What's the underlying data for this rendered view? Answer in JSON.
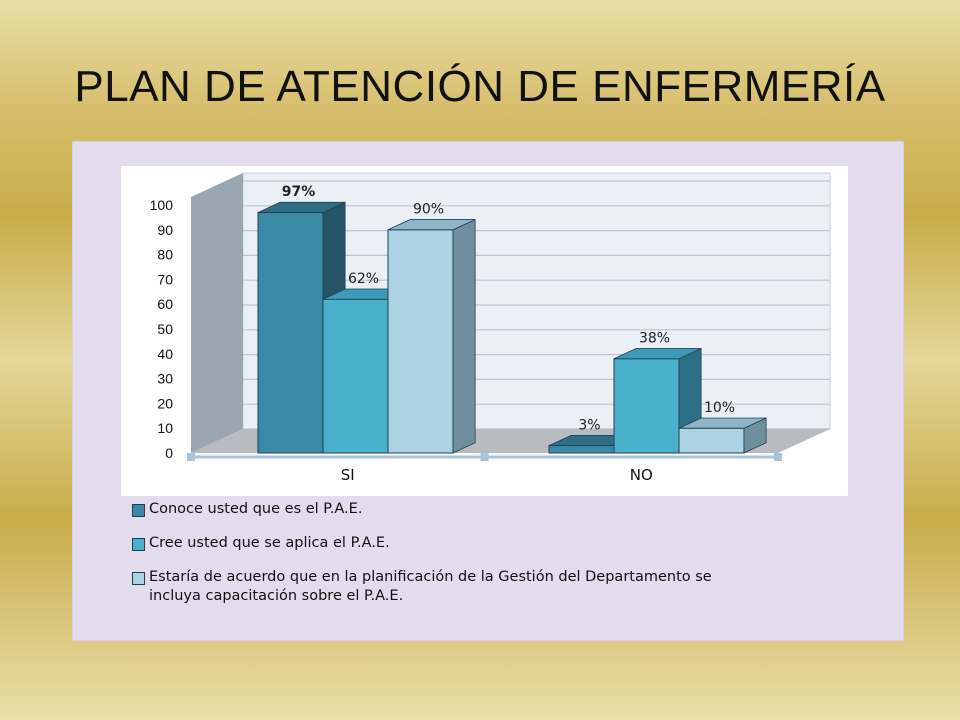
{
  "slide": {
    "title": "PLAN DE ATENCIÓN DE ENFERMERÍA"
  },
  "chart_data": {
    "type": "bar",
    "three_d": true,
    "categories": [
      "SI",
      "NO"
    ],
    "series": [
      {
        "name": "Conoce usted que es el P.A.E.",
        "values": [
          97,
          3
        ],
        "labels": [
          "97%",
          "3%"
        ],
        "color": "#3a8aa5",
        "side_color": "#245566",
        "top_color": "#2e6f86"
      },
      {
        "name": "Cree usted que se aplica el P.A.E.",
        "values": [
          62,
          38
        ],
        "labels": [
          "62%",
          "38%"
        ],
        "color": "#4ab0cc",
        "side_color": "#2e6f86",
        "top_color": "#3c9bb6"
      },
      {
        "name": "Estaría de acuerdo que en la planificación de la Gestión del Departamento se incluya capacitación sobre el P.A.E.",
        "values": [
          90,
          10
        ],
        "labels": [
          "90%",
          "10%"
        ],
        "color": "#abd3e3",
        "side_color": "#6f8e9e",
        "top_color": "#8fb4c6"
      }
    ],
    "ylim": [
      0,
      100
    ],
    "yticks": [
      0,
      10,
      20,
      30,
      40,
      50,
      60,
      70,
      80,
      90,
      100
    ],
    "grid": true,
    "legend_placement": "bottom",
    "colors": {
      "wall": "#eaf0f6",
      "wall_side": "#9aa6b0",
      "floor": "#b7bcc2",
      "grid": "#b9c5d2",
      "axis_marker": "#a9c4dc"
    }
  },
  "legend": [
    {
      "text": "Conoce usted que es el P.A.E."
    },
    {
      "text": "Cree usted que se aplica el P.A.E."
    },
    {
      "lines": [
        "Estaría de acuerdo que en la planificación de la Gestión del Departamento se",
        "incluya capacitación sobre el P.A.E."
      ]
    }
  ]
}
